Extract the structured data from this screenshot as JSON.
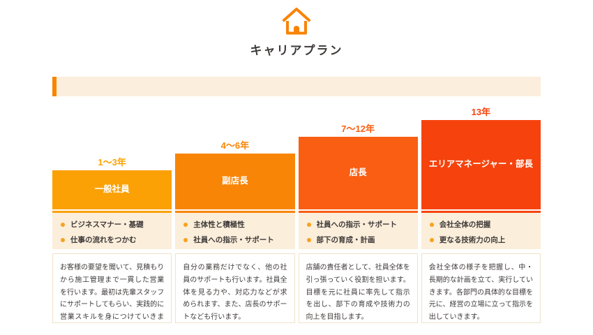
{
  "page": {
    "title": "キャリアプラン"
  },
  "section_bar": {
    "text": ""
  },
  "theme": {
    "accent_orange": "#f98400",
    "icon_orange": "#f98307",
    "bullet_dot": "#f7a21e",
    "panel_bg": "#fbeedb",
    "desc_border": "#f0e2ca",
    "text": "#3e3a39"
  },
  "columns": [
    {
      "years": "1〜3年",
      "role": "一般社員",
      "color": "#fba106",
      "block_height": 56,
      "bullets": [
        "ビジネスマナー・基礎",
        "仕事の流れをつかむ"
      ],
      "description": "お客様の要望を聞いて、見積もりから施工管理まで一貫した営業を行います。最初は先輩スタッフにサポートしてもらい、実践的に営業スキルを身につけていきます。"
    },
    {
      "years": "4〜6年",
      "role": "副店長",
      "color": "#f98507",
      "block_height": 80,
      "bullets": [
        "主体性と積極性",
        "社員への指示・サポート"
      ],
      "description": "自分の業務だけでなく、他の社員のサポートも行います。社員全体を見る力や、対応力などが求められます、また、店長のサポートなども行います。"
    },
    {
      "years": "7〜12年",
      "role": "店長",
      "color": "#f95e13",
      "block_height": 104,
      "bullets": [
        "社員への指示・サポート",
        "部下の育成・計画"
      ],
      "description": "店舗の責任者として、社員全体を引っ張っていく役割を担います。目標を元に社員に率先して指示を出し、部下の育成や技術力の向上を目指します。"
    },
    {
      "years": "13年",
      "role": "エリアマネージャー・部長",
      "color": "#f6430d",
      "block_height": 128,
      "bullets": [
        "会社全体の把握",
        "更なる技術力の向上"
      ],
      "description": "会社全体の様子を把握し、中・長期的な計画を立て、実行していきます。各部門の具体的な目標を元に、経営の立場に立って指示を出していきます。"
    }
  ]
}
